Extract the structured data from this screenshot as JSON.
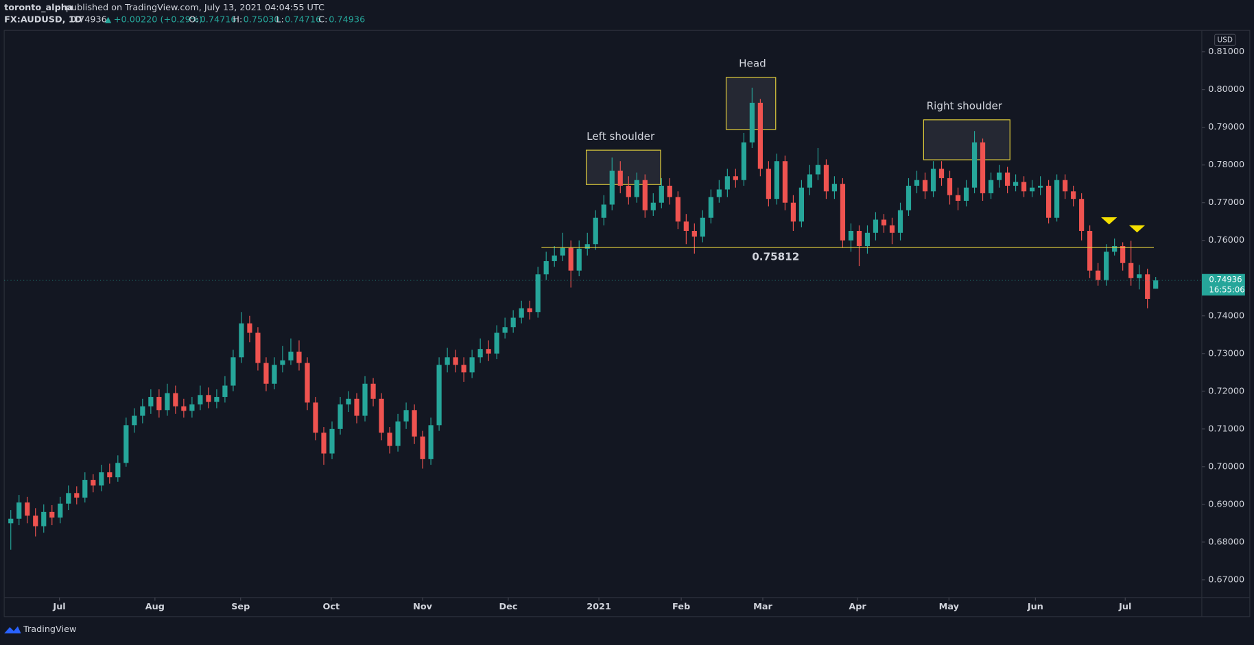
{
  "header": {
    "author": "toronto_alpha",
    "published": "published on TradingView.com, July 13, 2021 04:04:55 UTC",
    "symbol": "FX:AUDUSD, 1D",
    "last": "0.74936",
    "change": "+0.00220 (+0.29%)",
    "ohlc": [
      [
        "O:",
        "0.74716"
      ],
      [
        "H:",
        "0.75030"
      ],
      [
        "L:",
        "0.74716"
      ],
      [
        "C:",
        "0.74936"
      ]
    ]
  },
  "chart_data": {
    "type": "candlestick",
    "currency": "USD",
    "countdown": "16:55:06",
    "brand": "TradingView",
    "up_color": "#26a69a",
    "down_color": "#ef5350",
    "grid": false,
    "ylim": [
      0.6653,
      0.8157
    ],
    "yticks": [
      {
        "value": 0.67,
        "label": "0.67000"
      },
      {
        "value": 0.68,
        "label": "0.68000"
      },
      {
        "value": 0.69,
        "label": "0.69000"
      },
      {
        "value": 0.7,
        "label": "0.70000"
      },
      {
        "value": 0.71,
        "label": "0.71000"
      },
      {
        "value": 0.72,
        "label": "0.72000"
      },
      {
        "value": 0.73,
        "label": "0.73000"
      },
      {
        "value": 0.74,
        "label": "0.74000"
      },
      {
        "value": 0.75,
        "label": "0.75000"
      },
      {
        "value": 0.76,
        "label": "0.76000"
      },
      {
        "value": 0.77,
        "label": "0.77000"
      },
      {
        "value": 0.78,
        "label": "0.78000"
      },
      {
        "value": 0.79,
        "label": "0.79000"
      },
      {
        "value": 0.8,
        "label": "0.80000"
      },
      {
        "value": 0.81,
        "label": "0.81000"
      }
    ],
    "xlim": [
      -0.3,
      145.1
    ],
    "xticks": [
      {
        "value": 6.4,
        "label": "Jul"
      },
      {
        "value": 18.0,
        "label": "Aug"
      },
      {
        "value": 28.4,
        "label": "Sep"
      },
      {
        "value": 39.4,
        "label": "Oct"
      },
      {
        "value": 50.5,
        "label": "Nov"
      },
      {
        "value": 60.9,
        "label": "Dec"
      },
      {
        "value": 71.9,
        "label": "2021"
      },
      {
        "value": 81.9,
        "label": "Feb"
      },
      {
        "value": 91.8,
        "label": "Mar"
      },
      {
        "value": 103.3,
        "label": "Apr"
      },
      {
        "value": 114.4,
        "label": "May"
      },
      {
        "value": 124.9,
        "label": "Jun"
      },
      {
        "value": 135.8,
        "label": "Jul"
      }
    ],
    "level": 0.75812,
    "annotations": [
      "Left shoulder",
      "Head",
      "Right shoulder"
    ],
    "open": [
      0.685,
      0.6862,
      0.6905,
      0.687,
      0.6842,
      0.688,
      0.6865,
      0.6902,
      0.693,
      0.6918,
      0.6965,
      0.695,
      0.6985,
      0.6972,
      0.701,
      0.711,
      0.7135,
      0.716,
      0.7185,
      0.715,
      0.7195,
      0.716,
      0.7148,
      0.7165,
      0.719,
      0.7172,
      0.7185,
      0.7215,
      0.729,
      0.738,
      0.7355,
      0.7275,
      0.722,
      0.727,
      0.7282,
      0.7305,
      0.7275,
      0.717,
      0.709,
      0.7035,
      0.71,
      0.7165,
      0.718,
      0.7135,
      0.722,
      0.718,
      0.709,
      0.7055,
      0.712,
      0.715,
      0.708,
      0.702,
      0.711,
      0.727,
      0.729,
      0.727,
      0.725,
      0.729,
      0.7312,
      0.73,
      0.7355,
      0.737,
      0.7395,
      0.742,
      0.741,
      0.751,
      0.7545,
      0.756,
      0.758,
      0.752,
      0.7578,
      0.759,
      0.766,
      0.7695,
      0.7785,
      0.7745,
      0.7715,
      0.776,
      0.768,
      0.77,
      0.7745,
      0.7715,
      0.765,
      0.7625,
      0.761,
      0.766,
      0.7715,
      0.7735,
      0.777,
      0.776,
      0.786,
      0.7965,
      0.779,
      0.771,
      0.781,
      0.77,
      0.765,
      0.774,
      0.7775,
      0.78,
      0.773,
      0.775,
      0.76,
      0.7625,
      0.7585,
      0.762,
      0.7655,
      0.764,
      0.762,
      0.768,
      0.7745,
      0.776,
      0.773,
      0.779,
      0.7765,
      0.772,
      0.7705,
      0.774,
      0.786,
      0.7725,
      0.776,
      0.778,
      0.7745,
      0.7755,
      0.773,
      0.774,
      0.7745,
      0.766,
      0.776,
      0.773,
      0.771,
      0.7625,
      0.752,
      0.7495,
      0.757,
      0.7585,
      0.754,
      0.75,
      0.751,
      0.7472
    ],
    "high": [
      0.6885,
      0.6925,
      0.692,
      0.689,
      0.69,
      0.6898,
      0.692,
      0.695,
      0.6948,
      0.6985,
      0.698,
      0.7005,
      0.7008,
      0.703,
      0.713,
      0.7155,
      0.718,
      0.7205,
      0.7205,
      0.722,
      0.7215,
      0.718,
      0.7185,
      0.7215,
      0.721,
      0.7205,
      0.724,
      0.731,
      0.741,
      0.74,
      0.737,
      0.729,
      0.729,
      0.732,
      0.734,
      0.7335,
      0.729,
      0.7185,
      0.7105,
      0.712,
      0.7185,
      0.72,
      0.7195,
      0.724,
      0.7235,
      0.7195,
      0.7105,
      0.714,
      0.717,
      0.7165,
      0.7095,
      0.713,
      0.729,
      0.7315,
      0.731,
      0.729,
      0.731,
      0.734,
      0.7335,
      0.7375,
      0.7395,
      0.7415,
      0.744,
      0.744,
      0.753,
      0.757,
      0.7585,
      0.762,
      0.76,
      0.76,
      0.762,
      0.768,
      0.772,
      0.782,
      0.781,
      0.777,
      0.778,
      0.7775,
      0.7725,
      0.7765,
      0.7765,
      0.773,
      0.767,
      0.7645,
      0.768,
      0.7735,
      0.776,
      0.779,
      0.779,
      0.7885,
      0.8005,
      0.7975,
      0.781,
      0.783,
      0.7825,
      0.772,
      0.776,
      0.78,
      0.7845,
      0.7815,
      0.777,
      0.7765,
      0.7645,
      0.764,
      0.764,
      0.7675,
      0.767,
      0.766,
      0.77,
      0.7765,
      0.7785,
      0.778,
      0.781,
      0.781,
      0.7785,
      0.774,
      0.776,
      0.789,
      0.787,
      0.778,
      0.78,
      0.7795,
      0.7775,
      0.777,
      0.776,
      0.777,
      0.776,
      0.7775,
      0.7775,
      0.7745,
      0.7725,
      0.764,
      0.754,
      0.759,
      0.7605,
      0.7595,
      0.7599,
      0.7535,
      0.7525,
      0.7503
    ],
    "low": [
      0.678,
      0.6845,
      0.685,
      0.6815,
      0.6825,
      0.6845,
      0.685,
      0.6885,
      0.69,
      0.6905,
      0.6932,
      0.6935,
      0.6955,
      0.696,
      0.7,
      0.709,
      0.7115,
      0.714,
      0.713,
      0.7135,
      0.714,
      0.713,
      0.713,
      0.715,
      0.7155,
      0.7155,
      0.717,
      0.72,
      0.7275,
      0.733,
      0.7255,
      0.72,
      0.7205,
      0.725,
      0.727,
      0.7255,
      0.715,
      0.707,
      0.7005,
      0.702,
      0.7085,
      0.7145,
      0.7115,
      0.712,
      0.716,
      0.707,
      0.7035,
      0.704,
      0.71,
      0.706,
      0.6995,
      0.7005,
      0.7095,
      0.725,
      0.725,
      0.7225,
      0.7235,
      0.7275,
      0.728,
      0.7285,
      0.734,
      0.7355,
      0.738,
      0.739,
      0.7395,
      0.7495,
      0.753,
      0.7545,
      0.7475,
      0.7505,
      0.756,
      0.7575,
      0.764,
      0.768,
      0.7725,
      0.7695,
      0.77,
      0.766,
      0.7665,
      0.7685,
      0.7695,
      0.763,
      0.759,
      0.7565,
      0.7595,
      0.7645,
      0.77,
      0.7715,
      0.774,
      0.7745,
      0.7845,
      0.777,
      0.769,
      0.7695,
      0.768,
      0.7625,
      0.7635,
      0.772,
      0.776,
      0.771,
      0.771,
      0.758,
      0.757,
      0.7532,
      0.7565,
      0.76,
      0.762,
      0.759,
      0.76,
      0.7665,
      0.7725,
      0.771,
      0.7715,
      0.7745,
      0.7695,
      0.768,
      0.769,
      0.7725,
      0.7705,
      0.771,
      0.774,
      0.7725,
      0.773,
      0.7715,
      0.7715,
      0.772,
      0.7645,
      0.765,
      0.771,
      0.769,
      0.76,
      0.75,
      0.748,
      0.748,
      0.756,
      0.752,
      0.748,
      0.747,
      0.742,
      0.7472
    ],
    "close": [
      0.6862,
      0.6905,
      0.687,
      0.6842,
      0.688,
      0.6865,
      0.6902,
      0.693,
      0.6918,
      0.6965,
      0.695,
      0.6985,
      0.6972,
      0.701,
      0.711,
      0.7135,
      0.716,
      0.7185,
      0.715,
      0.7195,
      0.716,
      0.7148,
      0.7165,
      0.719,
      0.7172,
      0.7185,
      0.7215,
      0.729,
      0.738,
      0.7355,
      0.7275,
      0.722,
      0.727,
      0.7282,
      0.7305,
      0.7275,
      0.717,
      0.709,
      0.7035,
      0.71,
      0.7165,
      0.718,
      0.7135,
      0.722,
      0.718,
      0.709,
      0.7055,
      0.712,
      0.715,
      0.708,
      0.702,
      0.711,
      0.727,
      0.729,
      0.727,
      0.725,
      0.729,
      0.7312,
      0.73,
      0.7355,
      0.737,
      0.7395,
      0.742,
      0.741,
      0.751,
      0.7545,
      0.756,
      0.758,
      0.752,
      0.7578,
      0.759,
      0.766,
      0.7695,
      0.7785,
      0.7745,
      0.7715,
      0.776,
      0.768,
      0.77,
      0.7745,
      0.7715,
      0.765,
      0.7625,
      0.761,
      0.766,
      0.7715,
      0.7735,
      0.777,
      0.776,
      0.786,
      0.7965,
      0.779,
      0.771,
      0.781,
      0.77,
      0.765,
      0.774,
      0.7775,
      0.78,
      0.773,
      0.775,
      0.76,
      0.7625,
      0.7585,
      0.762,
      0.7655,
      0.764,
      0.762,
      0.768,
      0.7745,
      0.776,
      0.773,
      0.779,
      0.7765,
      0.772,
      0.7705,
      0.774,
      0.786,
      0.7725,
      0.776,
      0.778,
      0.7745,
      0.7755,
      0.773,
      0.774,
      0.7745,
      0.766,
      0.776,
      0.773,
      0.771,
      0.7625,
      0.752,
      0.7495,
      0.757,
      0.7585,
      0.754,
      0.75,
      0.751,
      0.7445,
      0.7494
    ]
  }
}
